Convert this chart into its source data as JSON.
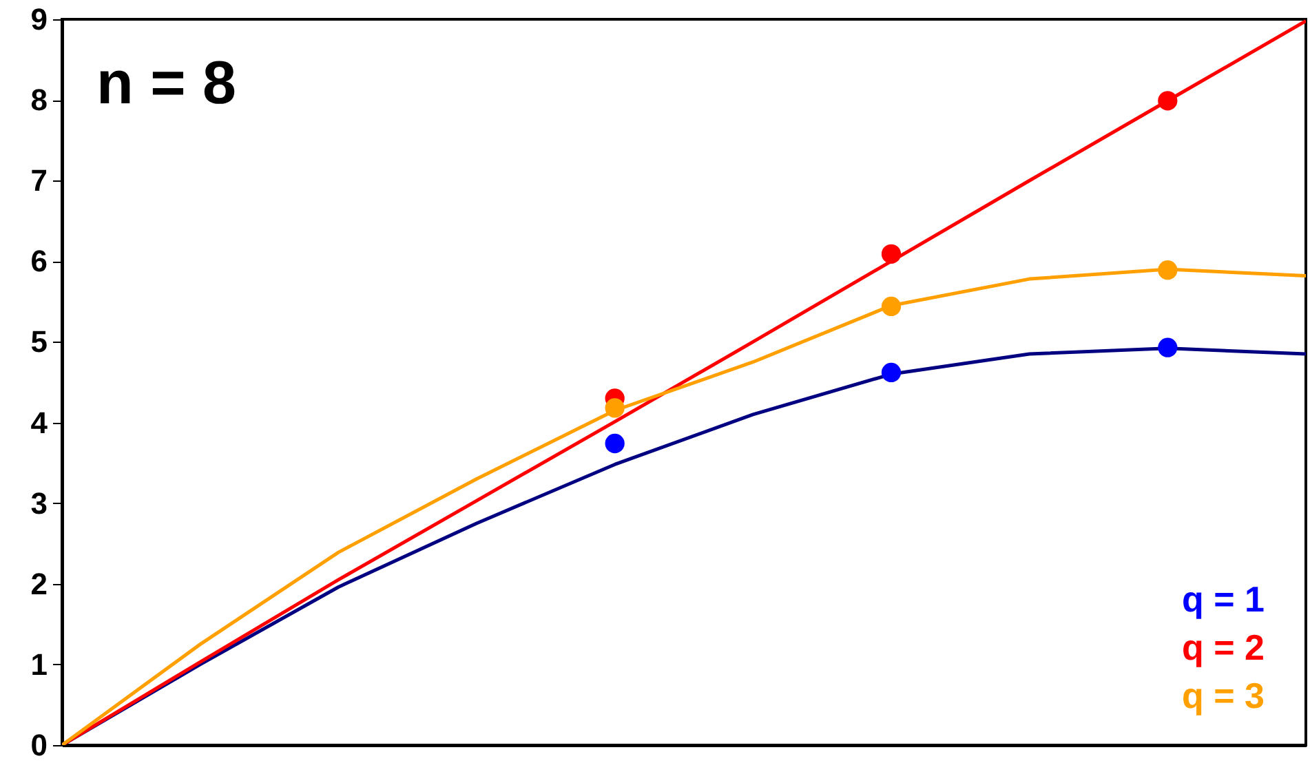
{
  "chart_data": {
    "type": "line",
    "annotations": [
      "n = 8"
    ],
    "categories": [
      null,
      null,
      null,
      null,
      null,
      null,
      null,
      null,
      null,
      null
    ],
    "ylim": [
      0,
      9
    ],
    "yticks": [
      0,
      1,
      2,
      3,
      4,
      5,
      6,
      7,
      8,
      9
    ],
    "tick_labels": "y",
    "series": [
      {
        "marker": "none",
        "color": "#000080",
        "values": [
          0,
          1.0,
          1.96,
          2.75,
          3.48,
          4.1,
          4.6,
          4.85,
          4.92,
          4.85
        ]
      },
      {
        "marker": "none",
        "color": "#ff0000",
        "values": [
          0,
          1.03,
          2.05,
          3.03,
          4.01,
          5.0,
          6.0,
          7.0,
          7.99,
          8.98
        ]
      },
      {
        "marker": "none",
        "color": "#ffa000",
        "values": [
          0,
          1.25,
          2.39,
          3.3,
          4.15,
          4.75,
          5.45,
          5.78,
          5.9,
          5.82
        ]
      },
      {
        "type": "scatter",
        "marker": "circle",
        "name": "q = 1",
        "color": "#0000ff",
        "values": [
          null,
          null,
          null,
          null,
          3.74,
          null,
          4.62,
          null,
          4.93,
          null
        ]
      },
      {
        "type": "scatter",
        "marker": "circle",
        "name": "q = 2",
        "color": "#ff0000",
        "values": [
          null,
          null,
          null,
          null,
          4.3,
          null,
          6.09,
          null,
          7.99,
          null
        ]
      },
      {
        "type": "scatter",
        "marker": "circle",
        "name": "q = 3",
        "color": "#ffa000",
        "values": [
          null,
          null,
          null,
          null,
          4.18,
          null,
          5.44,
          null,
          5.89,
          null
        ]
      }
    ]
  }
}
